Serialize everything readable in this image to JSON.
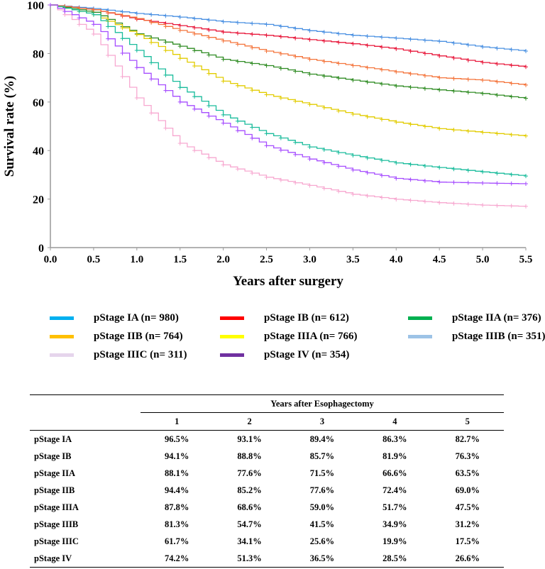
{
  "chart_data": {
    "type": "line",
    "title": "",
    "xlabel": "Years after surgery",
    "ylabel": "Survival rate (%)",
    "xlim": [
      0,
      5.5
    ],
    "ylim": [
      0,
      100
    ],
    "xticks": [
      "0.0",
      "0.5",
      "1.0",
      "1.5",
      "2.0",
      "2.5",
      "3.0",
      "3.5",
      "4.0",
      "4.5",
      "5.0",
      "5.5"
    ],
    "yticks": [
      "0",
      "20",
      "40",
      "60",
      "80",
      "100"
    ],
    "grid": false,
    "x": [
      0,
      0.5,
      1,
      1.5,
      2,
      2.5,
      3,
      3.5,
      4,
      4.5,
      5,
      5.5
    ],
    "series": [
      {
        "name": "pStage IA (n= 980)",
        "legend_color": "#00b0f0",
        "line_color": "#4a90e2",
        "values": [
          100,
          98.5,
          96.5,
          95,
          93.1,
          92,
          89.4,
          87.5,
          86.3,
          85,
          82.7,
          81
        ]
      },
      {
        "name": "pStage IB (n= 612)",
        "legend_color": "#ff0000",
        "line_color": "#e8173a",
        "values": [
          100,
          98,
          94.1,
          91.5,
          88.8,
          87.5,
          85.7,
          84,
          81.9,
          79,
          76.3,
          74.5
        ]
      },
      {
        "name": "pStage IIA (n= 376)",
        "legend_color": "#00b050",
        "line_color": "#2e8b22",
        "values": [
          100,
          97,
          88.1,
          83,
          77.6,
          75,
          71.5,
          69,
          66.6,
          65,
          63.5,
          61.5
        ]
      },
      {
        "name": "pStage IIB (n= 764)",
        "legend_color": "#ffc000",
        "line_color": "#f4743b",
        "values": [
          100,
          98,
          94.4,
          89.5,
          85.2,
          81,
          77.6,
          75,
          72.4,
          70,
          69,
          67
        ]
      },
      {
        "name": "pStage IIIA (n= 766)",
        "legend_color": "#ffff00",
        "line_color": "#e2cc00",
        "values": [
          100,
          96,
          87.8,
          78,
          68.6,
          63,
          59,
          55,
          51.7,
          49,
          47.5,
          46
        ]
      },
      {
        "name": "pStage IIIB (n= 351)",
        "legend_color": "#9dc3e6",
        "line_color": "#1abc9c",
        "values": [
          100,
          96,
          81.3,
          66,
          54.7,
          47,
          41.5,
          38,
          34.9,
          33,
          31.2,
          29.5
        ]
      },
      {
        "name": "pStage IIIC (n= 311)",
        "legend_color": "#e6d5ec",
        "line_color": "#f7a8d0",
        "values": [
          100,
          88,
          61.7,
          43,
          34.1,
          29,
          25.6,
          22,
          19.9,
          18.5,
          17.5,
          17
        ]
      },
      {
        "name": "pStage IV (n= 354)",
        "legend_color": "#7030a0",
        "line_color": "#a64dff",
        "values": [
          100,
          92,
          74.2,
          60,
          51.3,
          42,
          36.5,
          32,
          28.5,
          27,
          26.6,
          26.3
        ]
      }
    ]
  },
  "table": {
    "group_header": "Years after Esophagectomy",
    "columns": [
      "1",
      "2",
      "3",
      "4",
      "5"
    ],
    "rows": [
      {
        "label": "pStage IA",
        "values": [
          "96.5%",
          "93.1%",
          "89.4%",
          "86.3%",
          "82.7%"
        ]
      },
      {
        "label": "pStage IB",
        "values": [
          "94.1%",
          "88.8%",
          "85.7%",
          "81.9%",
          "76.3%"
        ]
      },
      {
        "label": "pStage IIA",
        "values": [
          "88.1%",
          "77.6%",
          "71.5%",
          "66.6%",
          "63.5%"
        ]
      },
      {
        "label": "pStage IIB",
        "values": [
          "94.4%",
          "85.2%",
          "77.6%",
          "72.4%",
          "69.0%"
        ]
      },
      {
        "label": "pStage IIIA",
        "values": [
          "87.8%",
          "68.6%",
          "59.0%",
          "51.7%",
          "47.5%"
        ]
      },
      {
        "label": "pStage IIIB",
        "values": [
          "81.3%",
          "54.7%",
          "41.5%",
          "34.9%",
          "31.2%"
        ]
      },
      {
        "label": "pStage IIIC",
        "values": [
          "61.7%",
          "34.1%",
          "25.6%",
          "19.9%",
          "17.5%"
        ]
      },
      {
        "label": "pStage IV",
        "values": [
          "74.2%",
          "51.3%",
          "36.5%",
          "28.5%",
          "26.6%"
        ]
      }
    ]
  }
}
